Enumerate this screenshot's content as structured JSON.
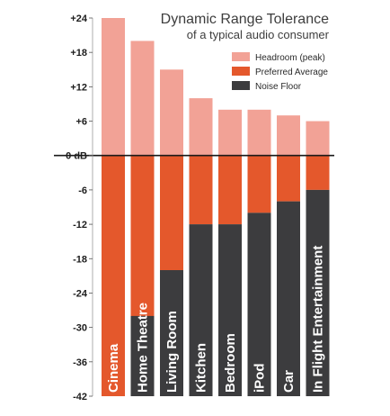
{
  "chart_data": {
    "type": "bar",
    "title": [
      "Dynamic Range Tolerance",
      "of a typical audio consumer"
    ],
    "categories": [
      "Cinema",
      "Home Theatre",
      "Living Room",
      "Kitchen",
      "Bedroom",
      "iPod",
      "Car",
      "In Flight Entertainment"
    ],
    "series": [
      {
        "name": "Headroom (peak)",
        "color": "#f2a296",
        "values": [
          24,
          20,
          15,
          10,
          8,
          8,
          7,
          6
        ]
      },
      {
        "name": "Preferred Average",
        "color": "#e4582c",
        "values": [
          -42,
          -42,
          -20,
          -12,
          -12,
          -10,
          -8,
          -6
        ]
      },
      {
        "name": "Noise Floor",
        "color": "#3c3c3e",
        "values": [
          -42,
          -28,
          -20,
          -12,
          -12,
          -10,
          -8,
          -6
        ]
      }
    ],
    "y_ticks": [
      "+24",
      "+18",
      "+12",
      "+6",
      "0 dB",
      "-6",
      "-12",
      "-18",
      "-24",
      "-30",
      "-36",
      "-42"
    ],
    "y_tick_values": [
      24,
      18,
      12,
      6,
      0,
      -6,
      -12,
      -18,
      -24,
      -30,
      -36,
      -42
    ],
    "ylim": [
      -42,
      24
    ],
    "grid": false,
    "legend_position": "top-right",
    "zero_line": true
  }
}
